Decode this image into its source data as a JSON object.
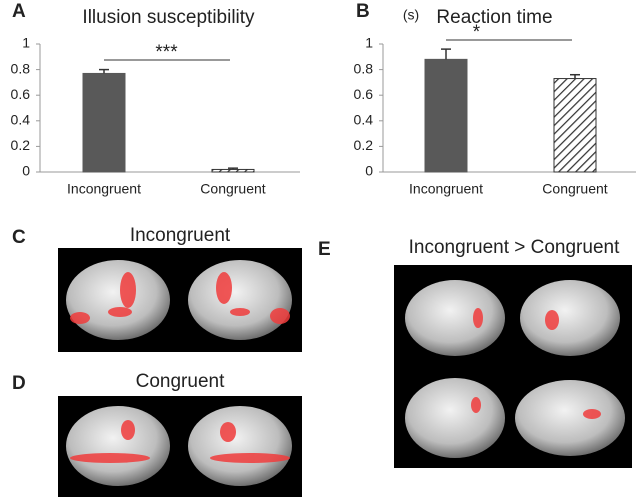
{
  "chart_data": [
    {
      "type": "bar",
      "panel": "A",
      "title": "Illusion susceptibility",
      "categories": [
        "Incongruent",
        "Congruent"
      ],
      "values": [
        0.77,
        0.02
      ],
      "errors": [
        0.03,
        0.01
      ],
      "color": "#595959",
      "hatched": [
        false,
        true
      ],
      "ylim": [
        0,
        1
      ],
      "yticks": [
        0,
        0.2,
        0.4,
        0.6,
        0.8,
        1
      ],
      "significance": "***"
    },
    {
      "type": "bar",
      "panel": "B",
      "title": "Reaction time",
      "y_unit": "(s)",
      "categories": [
        "Incongruent",
        "Congruent"
      ],
      "values": [
        0.88,
        0.73
      ],
      "errors": [
        0.08,
        0.03
      ],
      "color": "#595959",
      "hatched": [
        false,
        true
      ],
      "ylim": [
        0,
        1
      ],
      "yticks": [
        0,
        0.2,
        0.4,
        0.6,
        0.8,
        1
      ],
      "significance": "*"
    }
  ],
  "panels": [
    {
      "label": "C",
      "title": "Incongruent"
    },
    {
      "label": "D",
      "title": "Congruent"
    },
    {
      "label": "E",
      "title": "Incongruent > Congruent"
    }
  ]
}
